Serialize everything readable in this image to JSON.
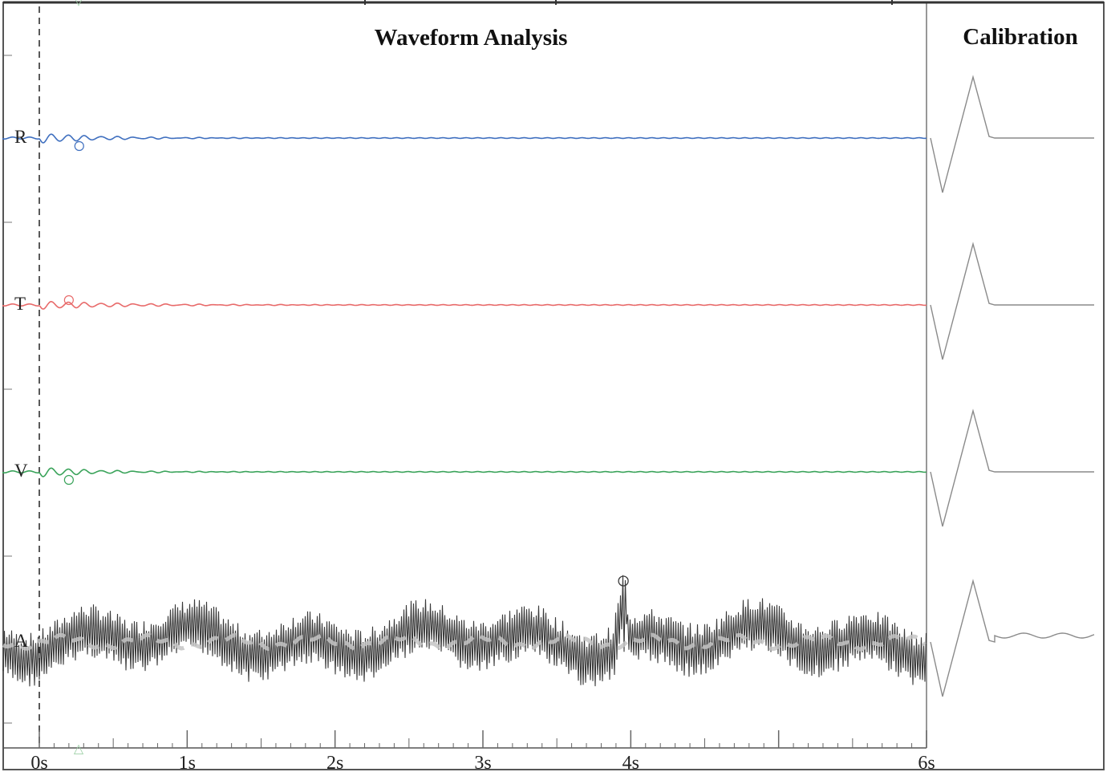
{
  "panel": {
    "title": "Waveform Analysis",
    "calibration_title": "Calibration"
  },
  "colors": {
    "R": "#3f6fbf",
    "T": "#e86a6a",
    "V": "#3aa35a",
    "A": "#3a3a3a",
    "A_highlight": "#c4c4c4",
    "calibration": "#8a8a8a",
    "frame": "#555555"
  },
  "chart_data": {
    "type": "line",
    "title": "Waveform Analysis",
    "xlabel": "",
    "ylabel": "",
    "xlim": [
      0,
      6
    ],
    "x_ticks": [
      {
        "value": 0,
        "label": "0s"
      },
      {
        "value": 1,
        "label": "1s"
      },
      {
        "value": 2,
        "label": "2s"
      },
      {
        "value": 3,
        "label": "3s"
      },
      {
        "value": 4,
        "label": "4s"
      },
      {
        "value": 6,
        "label": "6s"
      }
    ],
    "trigger_time": 0,
    "series": [
      {
        "name": "R",
        "peak_marker_time": 0.27,
        "ringing": "decaying oscillation after trigger, ~0.9 s"
      },
      {
        "name": "T",
        "peak_marker_time": 0.2,
        "ringing": "decaying oscillation after trigger, ~1.2 s"
      },
      {
        "name": "V",
        "peak_marker_time": 0.2,
        "ringing": "decaying oscillation after trigger, ~0.8 s"
      },
      {
        "name": "A",
        "peak_marker_time": 3.95,
        "ringing": "continuous dense oscillation across full record with isolated spike near 3.95 s"
      }
    ],
    "calibration": {
      "title": "Calibration",
      "channels": [
        "R",
        "T",
        "V",
        "A"
      ],
      "shape": "negative dip then positive peak then return to baseline"
    }
  }
}
